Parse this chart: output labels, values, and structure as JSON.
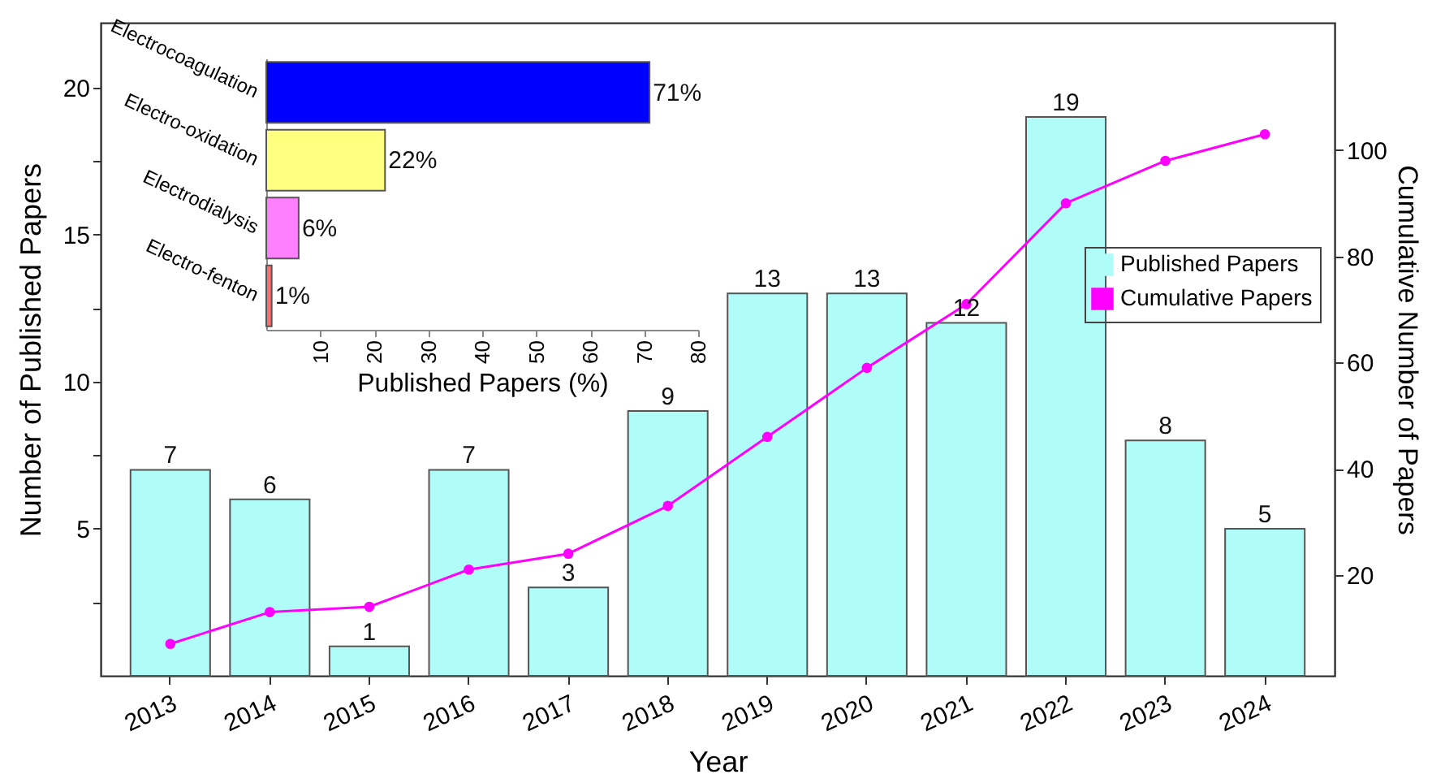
{
  "chart_data": [
    {
      "type": "bar",
      "xlabel": "Year",
      "ylabel": "Number of Published Papers",
      "y2label": "Cumulative Number of Papers",
      "categories": [
        "2013",
        "2014",
        "2015",
        "2016",
        "2017",
        "2018",
        "2019",
        "2020",
        "2021",
        "2022",
        "2023",
        "2024"
      ],
      "series": [
        {
          "name": "Published Papers",
          "color": "#b0fcf8",
          "values": [
            7,
            6,
            1,
            7,
            3,
            9,
            13,
            13,
            12,
            19,
            8,
            5
          ],
          "value_labels": [
            "7",
            "6",
            "1",
            "7",
            "3",
            "9",
            "13",
            "13",
            "12",
            "19",
            "8",
            "5"
          ]
        },
        {
          "name": "Cumulative Papers",
          "type": "line",
          "axis": "y2",
          "color": "#ff00ff",
          "values": [
            7,
            13,
            14,
            21,
            24,
            33,
            46,
            59,
            71,
            90,
            98,
            103
          ]
        }
      ],
      "ylim": [
        0,
        22.2
      ],
      "yticks": [
        {
          "value": 2.5,
          "label": null
        },
        5,
        {
          "value": 7.5,
          "label": null
        },
        10,
        {
          "value": 12.5,
          "label": null
        },
        15,
        {
          "value": 17.5,
          "label": null
        },
        20
      ],
      "y2lim": [
        1,
        124
      ],
      "y2ticks": [
        20,
        40,
        60,
        80,
        100
      ],
      "legend": "right",
      "marker": "circle",
      "grid": false
    },
    {
      "type": "bar",
      "orientation": "horizontal",
      "xlabel": "Published Papers (%)",
      "categories": [
        "Electrocoagulation",
        "Electro-oxidation",
        "Electrodialysis",
        "Electro-fenton"
      ],
      "values": [
        71,
        22,
        6,
        1
      ],
      "colors": [
        "#0000ff",
        "#ffff80",
        "#ff80ff",
        "#ff7070"
      ],
      "value_labels": [
        "71%",
        "22%",
        "6%",
        "1%"
      ],
      "xlim": [
        0,
        80
      ],
      "xticks": [
        10,
        20,
        30,
        40,
        50,
        60,
        70,
        80
      ]
    }
  ]
}
